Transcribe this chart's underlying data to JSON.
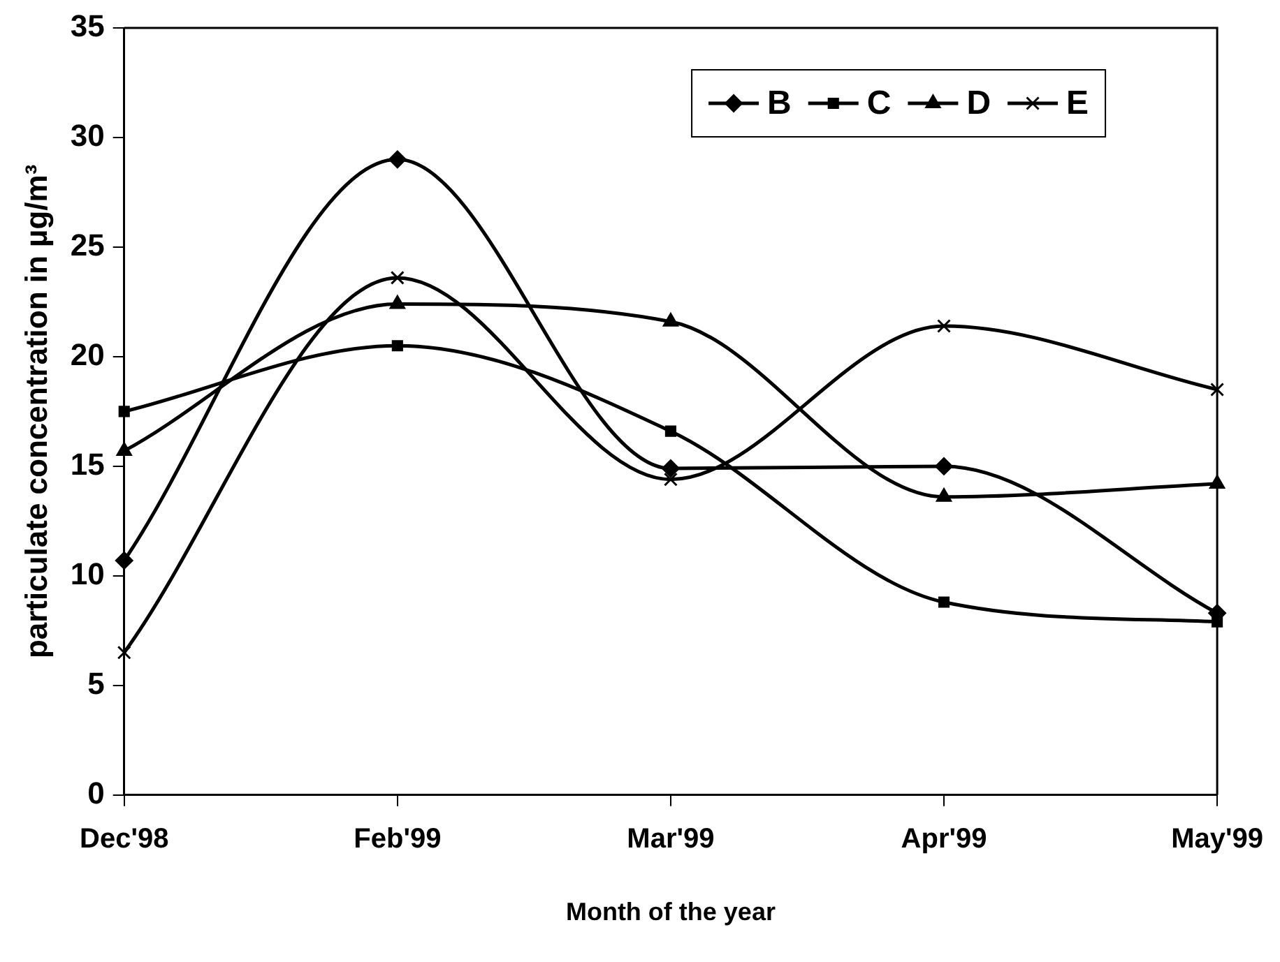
{
  "chart_data": {
    "type": "line",
    "xlabel": "Month of the year",
    "ylabel": "particulate concentration in µg/m³",
    "categories": [
      "Dec'98",
      "Feb'99",
      "Mar'99",
      "Apr'99",
      "May'99"
    ],
    "series": [
      {
        "name": "B",
        "color": "#000000",
        "marker": "diamond",
        "values": [
          10.7,
          29,
          14.9,
          15,
          8.3
        ]
      },
      {
        "name": "C",
        "color": "#000000",
        "marker": "square",
        "values": [
          17.5,
          20.5,
          16.6,
          8.8,
          7.9
        ]
      },
      {
        "name": "D",
        "color": "#000000",
        "marker": "triangle",
        "values": [
          15.7,
          22.4,
          21.6,
          13.6,
          14.2
        ]
      },
      {
        "name": "E",
        "color": "#000000",
        "marker": "cross",
        "values": [
          6.5,
          23.6,
          14.4,
          21.4,
          18.5
        ]
      }
    ],
    "ylim": [
      0,
      35
    ],
    "yticks": [
      0,
      5,
      10,
      15,
      20,
      25,
      30,
      35
    ],
    "grid": false,
    "legend": "top right"
  }
}
